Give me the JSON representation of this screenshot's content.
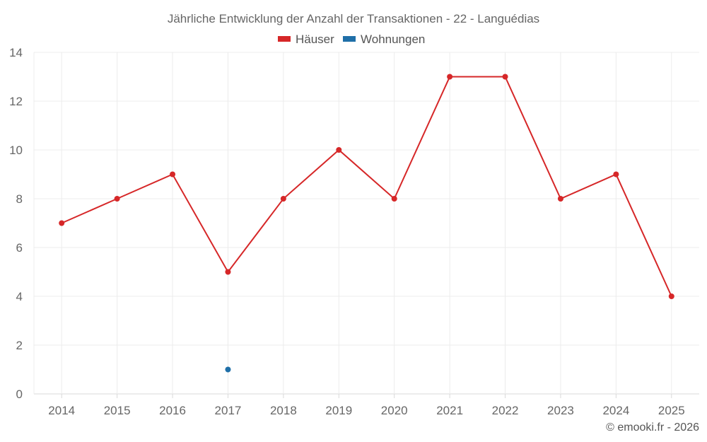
{
  "chart_data": {
    "type": "line",
    "title": "Jährliche Entwicklung der Anzahl der Transaktionen - 22 - Languédias",
    "categories": [
      "2014",
      "2015",
      "2016",
      "2017",
      "2018",
      "2019",
      "2020",
      "2021",
      "2022",
      "2023",
      "2024",
      "2025"
    ],
    "series": [
      {
        "name": "Häuser",
        "color": "#d62728",
        "values": [
          7,
          8,
          9,
          5,
          8,
          10,
          8,
          13,
          13,
          8,
          9,
          4
        ]
      },
      {
        "name": "Wohnungen",
        "color": "#1f6fa8",
        "values": [
          null,
          null,
          null,
          1,
          null,
          null,
          null,
          null,
          null,
          null,
          null,
          null
        ]
      }
    ],
    "ylim": [
      0,
      14
    ],
    "yticks": [
      0,
      2,
      4,
      6,
      8,
      10,
      12,
      14
    ],
    "xlabel": "",
    "ylabel": "",
    "legend_position": "top-center",
    "grid": true
  },
  "credit": "© emooki.fr - 2026"
}
